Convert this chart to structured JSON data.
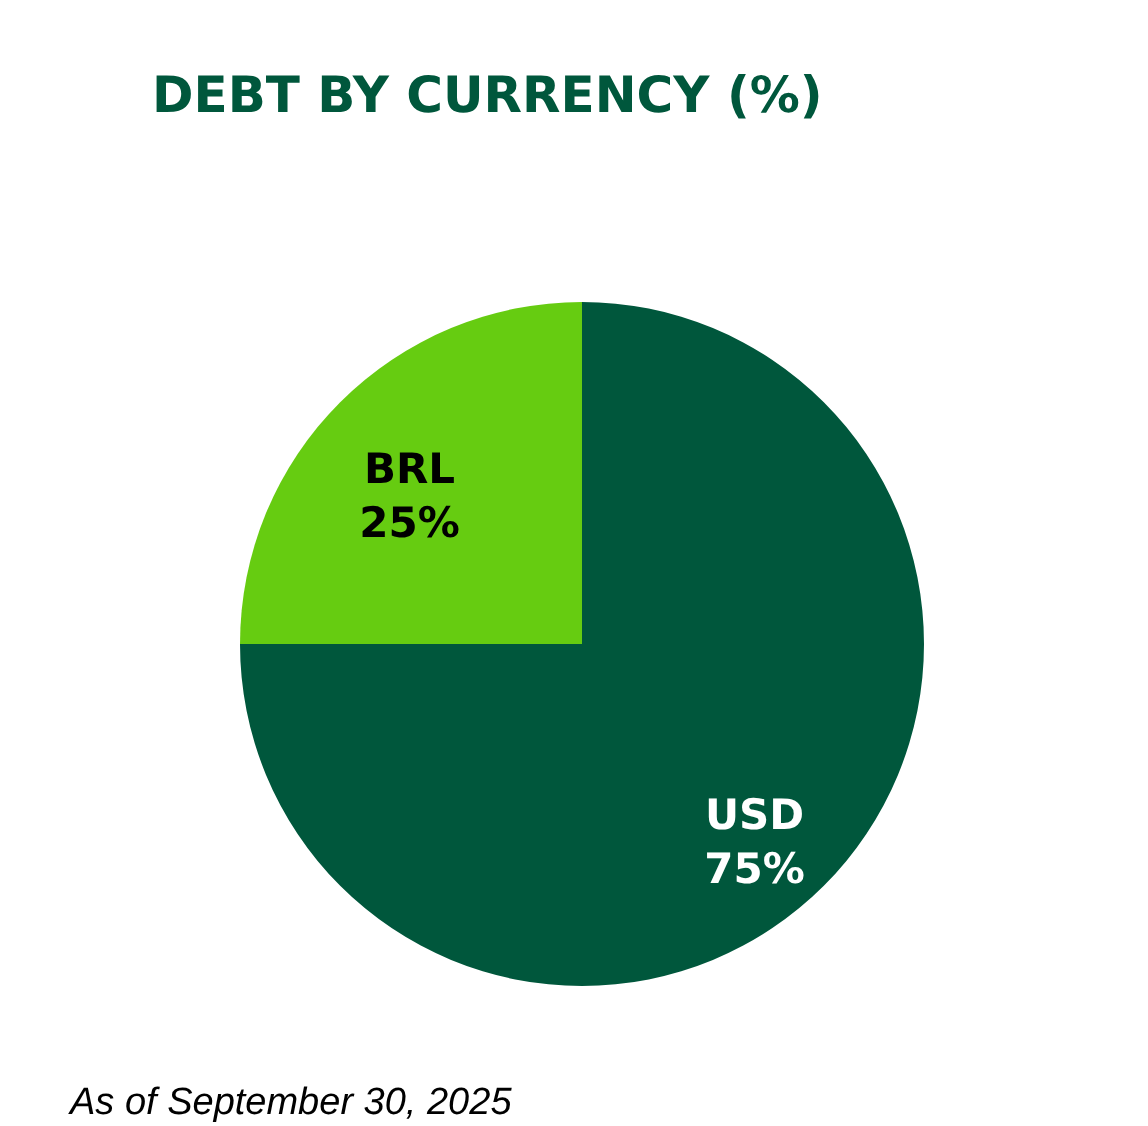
{
  "chart_data": {
    "type": "pie",
    "title": "DEBT BY CURRENCY (%)",
    "categories": [
      "USD",
      "BRL"
    ],
    "values": [
      75,
      25
    ],
    "colors": [
      "#00573c",
      "#66cc11"
    ],
    "value_labels": [
      "75%",
      "25%"
    ],
    "annotations": [
      "As of September 30, 2025"
    ]
  }
}
